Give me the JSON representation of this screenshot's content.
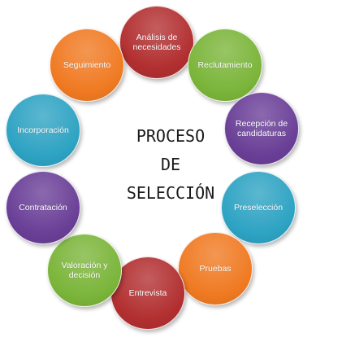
{
  "title": "PROCESO\nDE\nSELECCIÓN",
  "colors": {
    "red": "#b22f30",
    "green": "#7bb53a",
    "purple": "#6a3f97",
    "blue": "#2ea3c3",
    "orange": "#f07a22"
  },
  "steps": [
    {
      "label": "Análisis de\nnecesidades",
      "color": "red"
    },
    {
      "label": "Reclutamiento",
      "color": "green"
    },
    {
      "label": "Recepción de\ncandidaturas",
      "color": "purple"
    },
    {
      "label": "Preselección",
      "color": "blue"
    },
    {
      "label": "Pruebas",
      "color": "orange"
    },
    {
      "label": "Entrevista",
      "color": "red"
    },
    {
      "label": "Valoración y\ndecisión",
      "color": "green"
    },
    {
      "label": "Contratación",
      "color": "purple"
    },
    {
      "label": "Incorporación",
      "color": "blue"
    },
    {
      "label": "Seguimiento",
      "color": "orange"
    }
  ]
}
